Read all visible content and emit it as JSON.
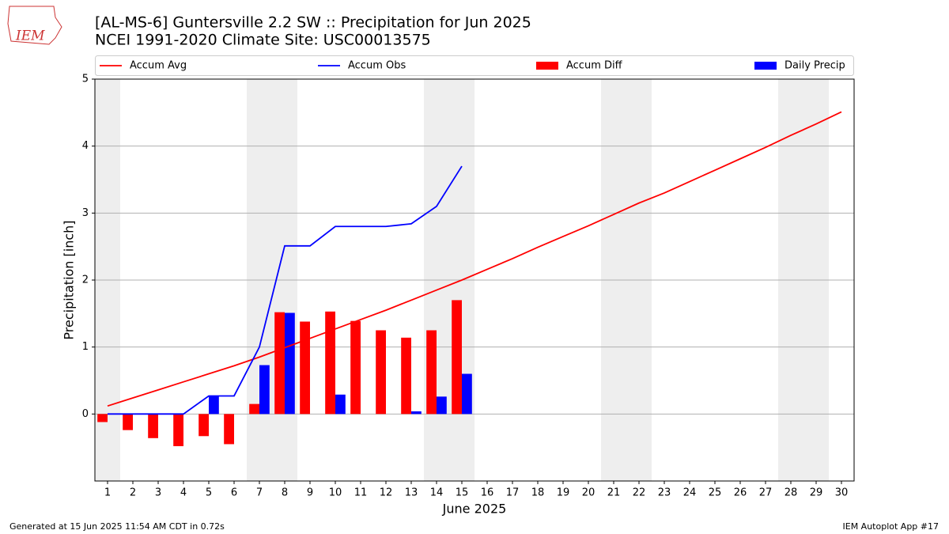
{
  "chart_data": {
    "type": "combo",
    "logo": "IEM",
    "title": "[AL-MS-6] Guntersville 2.2 SW :: Precipitation for Jun 2025",
    "subtitle": "NCEI 1991-2020 Climate Site: USC00013575",
    "x_label": "June 2025",
    "y_label": "Precipitation [inch]",
    "footer_left": "Generated at 15 Jun 2025 11:54 AM CDT in 0.72s",
    "footer_right": "IEM Autoplot App #17",
    "x": [
      1,
      2,
      3,
      4,
      5,
      6,
      7,
      8,
      9,
      10,
      11,
      12,
      13,
      14,
      15,
      16,
      17,
      18,
      19,
      20,
      21,
      22,
      23,
      24,
      25,
      26,
      27,
      28,
      29,
      30
    ],
    "xlim": [
      0.5,
      30.5
    ],
    "xticks": [
      1,
      2,
      3,
      4,
      5,
      6,
      7,
      8,
      9,
      10,
      11,
      12,
      13,
      14,
      15,
      16,
      17,
      18,
      19,
      20,
      21,
      22,
      23,
      24,
      25,
      26,
      27,
      28,
      29,
      30
    ],
    "ylim": [
      -1,
      5
    ],
    "yticks": [
      0,
      1,
      2,
      3,
      4,
      5
    ],
    "grid": true,
    "shaded_ranges": [
      [
        0.5,
        1.5
      ],
      [
        6.5,
        8.5
      ],
      [
        13.5,
        15.5
      ],
      [
        20.5,
        22.5
      ],
      [
        27.5,
        29.5
      ]
    ],
    "shade_color": "#eeeeee",
    "series": [
      {
        "name": "Accum Avg",
        "type": "line",
        "color": "#ff0000",
        "values": [
          0.12,
          0.24,
          0.36,
          0.48,
          0.6,
          0.72,
          0.85,
          0.99,
          1.13,
          1.27,
          1.41,
          1.55,
          1.7,
          1.85,
          2.0,
          2.16,
          2.32,
          2.49,
          2.65,
          2.81,
          2.98,
          3.15,
          3.3,
          3.47,
          3.64,
          3.81,
          3.98,
          4.16,
          4.33,
          4.51
        ]
      },
      {
        "name": "Accum Obs",
        "type": "line",
        "color": "#0000ff",
        "values": [
          0,
          0,
          0,
          0,
          0.27,
          0.27,
          1.0,
          2.51,
          2.51,
          2.8,
          2.8,
          2.8,
          2.84,
          3.1,
          3.7,
          null,
          null,
          null,
          null,
          null,
          null,
          null,
          null,
          null,
          null,
          null,
          null,
          null,
          null,
          null
        ]
      },
      {
        "name": "Accum Diff",
        "type": "bar",
        "color": "#ff0000",
        "offset": -0.4,
        "width": 0.4,
        "values": [
          -0.12,
          -0.24,
          -0.36,
          -0.48,
          -0.33,
          -0.45,
          0.15,
          1.52,
          1.38,
          1.53,
          1.39,
          1.25,
          1.14,
          1.25,
          1.7,
          null,
          null,
          null,
          null,
          null,
          null,
          null,
          null,
          null,
          null,
          null,
          null,
          null,
          null,
          null
        ]
      },
      {
        "name": "Daily Precip",
        "type": "bar",
        "color": "#0000ff",
        "offset": 0,
        "width": 0.4,
        "values": [
          0,
          0,
          0,
          0,
          0.27,
          0,
          0.73,
          1.51,
          0,
          0.29,
          0,
          0,
          0.04,
          0.26,
          0.6,
          null,
          null,
          null,
          null,
          null,
          null,
          null,
          null,
          null,
          null,
          null,
          null,
          null,
          null,
          null
        ]
      }
    ]
  }
}
